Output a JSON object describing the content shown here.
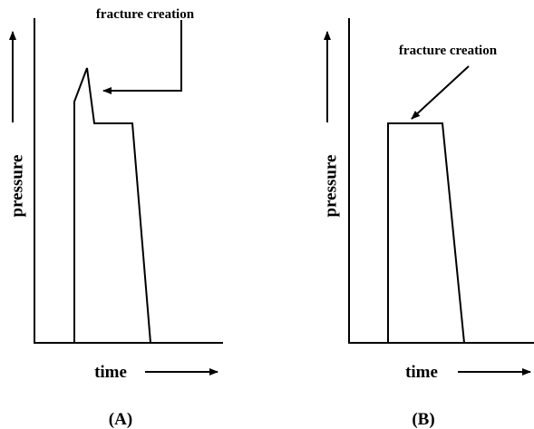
{
  "panels": [
    {
      "annotation": "fracture creation",
      "y_label": "pressure",
      "x_label": "time",
      "caption": "(A)"
    },
    {
      "annotation": "fracture creation",
      "y_label": "pressure",
      "x_label": "time",
      "caption": "(B)"
    }
  ]
}
